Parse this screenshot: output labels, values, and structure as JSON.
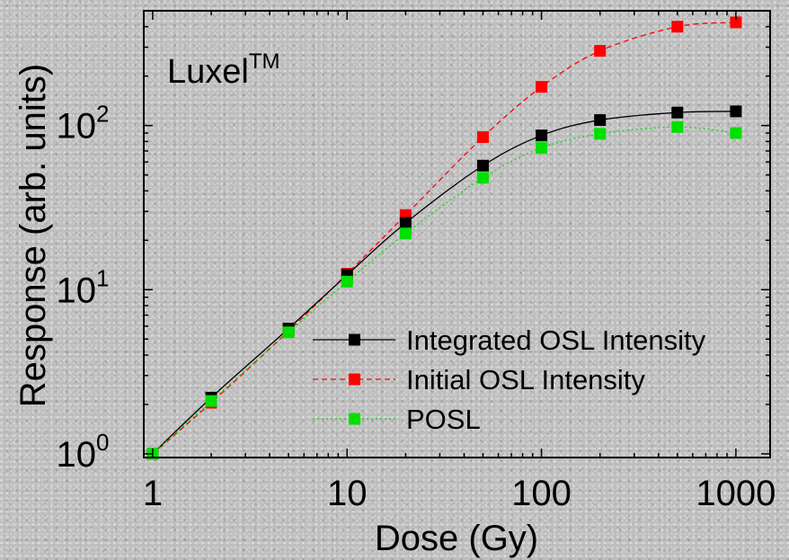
{
  "chart_data": {
    "type": "scatter",
    "annotation": {
      "text": "Luxel",
      "superscript": "TM"
    },
    "xlabel": "Dose (Gy)",
    "ylabel": "Response (arb. units)",
    "x_scale": "log",
    "y_scale": "log",
    "xlim": [
      0.9,
      1500
    ],
    "ylim": [
      0.95,
      500
    ],
    "x_ticks": [
      {
        "value": 1,
        "label": "1"
      },
      {
        "value": 10,
        "label": "10"
      },
      {
        "value": 100,
        "label": "100"
      },
      {
        "value": 1000,
        "label": "1000"
      }
    ],
    "y_ticks": [
      {
        "value": 1,
        "base": "10",
        "exp": "0"
      },
      {
        "value": 10,
        "base": "10",
        "exp": "1"
      },
      {
        "value": 100,
        "base": "10",
        "exp": "2"
      }
    ],
    "grid": false,
    "legend_position": "bottom-right",
    "series": [
      {
        "name": "Integrated OSL Intensity",
        "color": "#000000",
        "line_style": "solid",
        "x": [
          1,
          2,
          5,
          10,
          20,
          50,
          100,
          200,
          500,
          1000
        ],
        "y": [
          1.0,
          2.2,
          5.8,
          12.3,
          25.5,
          57,
          87,
          108,
          120,
          122
        ]
      },
      {
        "name": "Initial OSL Intensity",
        "color": "#ff0000",
        "line_style": "dashed",
        "x": [
          1,
          2,
          5,
          10,
          20,
          50,
          100,
          200,
          500,
          1000
        ],
        "y": [
          1.0,
          2.05,
          5.6,
          12.5,
          28.5,
          85,
          172,
          285,
          400,
          425
        ]
      },
      {
        "name": "POSL",
        "color": "#00e000",
        "line_style": "dotted",
        "x": [
          1,
          2,
          5,
          10,
          20,
          50,
          100,
          200,
          500,
          1000
        ],
        "y": [
          1.0,
          2.1,
          5.5,
          11.2,
          22,
          48,
          73,
          89,
          98,
          90
        ]
      }
    ]
  }
}
